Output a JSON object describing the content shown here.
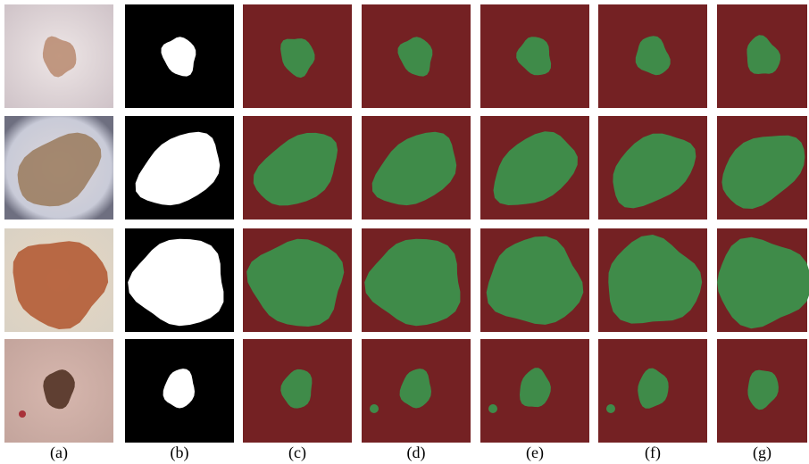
{
  "columns": [
    {
      "label": "(a)"
    },
    {
      "label": "(b)"
    },
    {
      "label": "(c)"
    },
    {
      "label": "(d)"
    },
    {
      "label": "(e)"
    },
    {
      "label": "(f)"
    },
    {
      "label": "(g)"
    }
  ]
}
